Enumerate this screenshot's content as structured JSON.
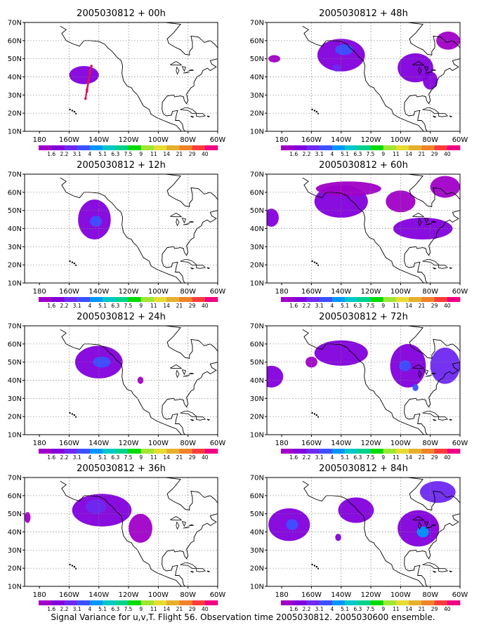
{
  "caption": "Signal Variance for u,v,T. Flight 56. Observation time 2005030812. 2005030600 ensemble.",
  "colors": {
    "scale": [
      "#a000c8",
      "#8200dc",
      "#6e28f0",
      "#3c50ff",
      "#0096ff",
      "#00c8c8",
      "#00d28c",
      "#00dc00",
      "#a0e632",
      "#e6dc32",
      "#e6af2d",
      "#f08228",
      "#fa3c3c",
      "#f00082"
    ],
    "land_outline": "#000000",
    "grid": "#808080",
    "track": "#e0105a"
  },
  "chart_data": [
    {
      "type": "heatmap",
      "title": "2005030812 + 00h",
      "xlim": [
        -190,
        -60
      ],
      "ylim": [
        10,
        70
      ],
      "x_ticks": [
        "180",
        "160W",
        "140W",
        "120W",
        "100W",
        "80W",
        "60W"
      ],
      "y_ticks": [
        "10N",
        "20N",
        "30N",
        "40N",
        "50N",
        "60N",
        "70N"
      ],
      "colorbar": [
        "1.6",
        "2.2",
        "3.1",
        "4",
        "5.1",
        "6.3",
        "7.5",
        "9",
        "11",
        "14",
        "21",
        "29",
        "40"
      ],
      "grid": true,
      "blobs": [
        {
          "lon": -150,
          "lat": 41,
          "rlon": 10,
          "rlat": 5,
          "level": 1
        }
      ],
      "track": [
        [
          -149,
          28
        ],
        [
          -148,
          33
        ],
        [
          -147,
          38
        ],
        [
          -146,
          43
        ],
        [
          -145,
          46
        ],
        [
          -146,
          42
        ],
        [
          -147,
          37
        ],
        [
          -148,
          32
        ]
      ]
    },
    {
      "type": "heatmap",
      "title": "2005030812 + 48h",
      "xlim": [
        -190,
        -60
      ],
      "ylim": [
        10,
        70
      ],
      "x_ticks": [
        "180",
        "160W",
        "140W",
        "120W",
        "100W",
        "80W",
        "60W"
      ],
      "y_ticks": [
        "10N",
        "20N",
        "30N",
        "40N",
        "50N",
        "60N",
        "70N"
      ],
      "colorbar": [
        "1.6",
        "2.2",
        "3.1",
        "4",
        "5.1",
        "6.3",
        "7.5",
        "9",
        "11",
        "14",
        "21",
        "29",
        "40"
      ],
      "grid": true,
      "blobs": [
        {
          "lon": -140,
          "lat": 52,
          "rlon": 16,
          "rlat": 9,
          "level": 1
        },
        {
          "lon": -138,
          "lat": 55,
          "rlon": 6,
          "rlat": 3,
          "level": 3
        },
        {
          "lon": -143,
          "lat": 45,
          "rlon": 3,
          "rlat": 2,
          "level": 2
        },
        {
          "lon": -90,
          "lat": 45,
          "rlon": 12,
          "rlat": 8,
          "level": 1
        },
        {
          "lon": -80,
          "lat": 38,
          "rlon": 5,
          "rlat": 5,
          "level": 1
        },
        {
          "lon": -185,
          "lat": 50,
          "rlon": 4,
          "rlat": 2,
          "level": 0
        },
        {
          "lon": -68,
          "lat": 60,
          "rlon": 8,
          "rlat": 5,
          "level": 0
        }
      ]
    },
    {
      "type": "heatmap",
      "title": "2005030812 + 12h",
      "xlim": [
        -190,
        -60
      ],
      "ylim": [
        10,
        70
      ],
      "x_ticks": [
        "180",
        "160W",
        "140W",
        "120W",
        "100W",
        "80W",
        "60W"
      ],
      "y_ticks": [
        "10N",
        "20N",
        "30N",
        "40N",
        "50N",
        "60N",
        "70N"
      ],
      "colorbar": [
        "1.6",
        "2.2",
        "3.1",
        "4",
        "5.1",
        "6.3",
        "7.5",
        "9",
        "11",
        "14",
        "21",
        "29",
        "40"
      ],
      "grid": true,
      "blobs": [
        {
          "lon": -143,
          "lat": 45,
          "rlon": 11,
          "rlat": 11,
          "level": 1
        },
        {
          "lon": -142,
          "lat": 44,
          "rlon": 4,
          "rlat": 3,
          "level": 3
        }
      ]
    },
    {
      "type": "heatmap",
      "title": "2005030812 + 60h",
      "xlim": [
        -190,
        -60
      ],
      "ylim": [
        10,
        70
      ],
      "x_ticks": [
        "180",
        "160W",
        "140W",
        "120W",
        "100W",
        "80W",
        "60W"
      ],
      "y_ticks": [
        "10N",
        "20N",
        "30N",
        "40N",
        "50N",
        "60N",
        "70N"
      ],
      "colorbar": [
        "1.6",
        "2.2",
        "3.1",
        "4",
        "5.1",
        "6.3",
        "7.5",
        "9",
        "11",
        "14",
        "21",
        "29",
        "40"
      ],
      "grid": true,
      "blobs": [
        {
          "lon": -140,
          "lat": 55,
          "rlon": 18,
          "rlat": 9,
          "level": 1
        },
        {
          "lon": -135,
          "lat": 62,
          "rlon": 22,
          "rlat": 4,
          "level": 0
        },
        {
          "lon": -100,
          "lat": 55,
          "rlon": 10,
          "rlat": 6,
          "level": 0
        },
        {
          "lon": -85,
          "lat": 40,
          "rlon": 20,
          "rlat": 6,
          "level": 1
        },
        {
          "lon": -70,
          "lat": 63,
          "rlon": 10,
          "rlat": 6,
          "level": 0
        },
        {
          "lon": -187,
          "lat": 46,
          "rlon": 5,
          "rlat": 5,
          "level": 1
        }
      ]
    },
    {
      "type": "heatmap",
      "title": "2005030812 + 24h",
      "xlim": [
        -190,
        -60
      ],
      "ylim": [
        10,
        70
      ],
      "x_ticks": [
        "180",
        "160W",
        "140W",
        "120W",
        "100W",
        "80W",
        "60W"
      ],
      "y_ticks": [
        "10N",
        "20N",
        "30N",
        "40N",
        "50N",
        "60N",
        "70N"
      ],
      "colorbar": [
        "1.6",
        "2.2",
        "3.1",
        "4",
        "5.1",
        "6.3",
        "7.5",
        "9",
        "11",
        "14",
        "21",
        "29",
        "40"
      ],
      "grid": true,
      "blobs": [
        {
          "lon": -140,
          "lat": 50,
          "rlon": 16,
          "rlat": 9,
          "level": 1
        },
        {
          "lon": -138,
          "lat": 50,
          "rlon": 6,
          "rlat": 3,
          "level": 3
        },
        {
          "lon": -112,
          "lat": 40,
          "rlon": 2,
          "rlat": 2,
          "level": 0
        }
      ]
    },
    {
      "type": "heatmap",
      "title": "2005030812 + 72h",
      "xlim": [
        -190,
        -60
      ],
      "ylim": [
        10,
        70
      ],
      "x_ticks": [
        "180",
        "160W",
        "140W",
        "120W",
        "100W",
        "80W",
        "60W"
      ],
      "y_ticks": [
        "10N",
        "20N",
        "30N",
        "40N",
        "50N",
        "60N",
        "70N"
      ],
      "colorbar": [
        "1.6",
        "2.2",
        "3.1",
        "4",
        "5.1",
        "6.3",
        "7.5",
        "9",
        "11",
        "14",
        "21",
        "29",
        "40"
      ],
      "grid": true,
      "blobs": [
        {
          "lon": -187,
          "lat": 42,
          "rlon": 8,
          "rlat": 6,
          "level": 1
        },
        {
          "lon": -140,
          "lat": 55,
          "rlon": 18,
          "rlat": 7,
          "level": 1
        },
        {
          "lon": -95,
          "lat": 48,
          "rlon": 12,
          "rlat": 12,
          "level": 1
        },
        {
          "lon": -97,
          "lat": 48,
          "rlon": 4,
          "rlat": 3,
          "level": 3
        },
        {
          "lon": -90,
          "lat": 36,
          "rlon": 2,
          "rlat": 2,
          "level": 3
        },
        {
          "lon": -70,
          "lat": 48,
          "rlon": 10,
          "rlat": 10,
          "level": 2
        },
        {
          "lon": -160,
          "lat": 50,
          "rlon": 4,
          "rlat": 3,
          "level": 0
        }
      ]
    },
    {
      "type": "heatmap",
      "title": "2005030812 + 36h",
      "xlim": [
        -190,
        -60
      ],
      "ylim": [
        10,
        70
      ],
      "x_ticks": [
        "180",
        "160W",
        "140W",
        "120W",
        "100W",
        "80W",
        "60W"
      ],
      "y_ticks": [
        "10N",
        "20N",
        "30N",
        "40N",
        "50N",
        "60N",
        "70N"
      ],
      "colorbar": [
        "1.6",
        "2.2",
        "3.1",
        "4",
        "5.1",
        "6.3",
        "7.5",
        "9",
        "11",
        "14",
        "21",
        "29",
        "40"
      ],
      "grid": true,
      "blobs": [
        {
          "lon": -138,
          "lat": 52,
          "rlon": 20,
          "rlat": 9,
          "level": 1
        },
        {
          "lon": -142,
          "lat": 54,
          "rlon": 7,
          "rlat": 4,
          "level": 2
        },
        {
          "lon": -112,
          "lat": 42,
          "rlon": 8,
          "rlat": 8,
          "level": 0
        },
        {
          "lon": -188,
          "lat": 48,
          "rlon": 2,
          "rlat": 3,
          "level": 0
        }
      ]
    },
    {
      "type": "heatmap",
      "title": "2005030812 + 84h",
      "xlim": [
        -190,
        -60
      ],
      "ylim": [
        10,
        70
      ],
      "x_ticks": [
        "180",
        "160W",
        "140W",
        "120W",
        "100W",
        "80W",
        "60W"
      ],
      "y_ticks": [
        "10N",
        "20N",
        "30N",
        "40N",
        "50N",
        "60N",
        "70N"
      ],
      "colorbar": [
        "1.6",
        "2.2",
        "3.1",
        "4",
        "5.1",
        "6.3",
        "7.5",
        "9",
        "11",
        "14",
        "21",
        "29",
        "40"
      ],
      "grid": true,
      "blobs": [
        {
          "lon": -175,
          "lat": 44,
          "rlon": 14,
          "rlat": 9,
          "level": 1
        },
        {
          "lon": -173,
          "lat": 44,
          "rlon": 4,
          "rlat": 3,
          "level": 3
        },
        {
          "lon": -130,
          "lat": 52,
          "rlon": 12,
          "rlat": 7,
          "level": 1
        },
        {
          "lon": -88,
          "lat": 42,
          "rlon": 14,
          "rlat": 10,
          "level": 1
        },
        {
          "lon": -85,
          "lat": 40,
          "rlon": 4,
          "rlat": 3,
          "level": 4
        },
        {
          "lon": -75,
          "lat": 62,
          "rlon": 12,
          "rlat": 6,
          "level": 2
        },
        {
          "lon": -142,
          "lat": 37,
          "rlon": 2,
          "rlat": 2,
          "level": 1
        }
      ]
    }
  ]
}
